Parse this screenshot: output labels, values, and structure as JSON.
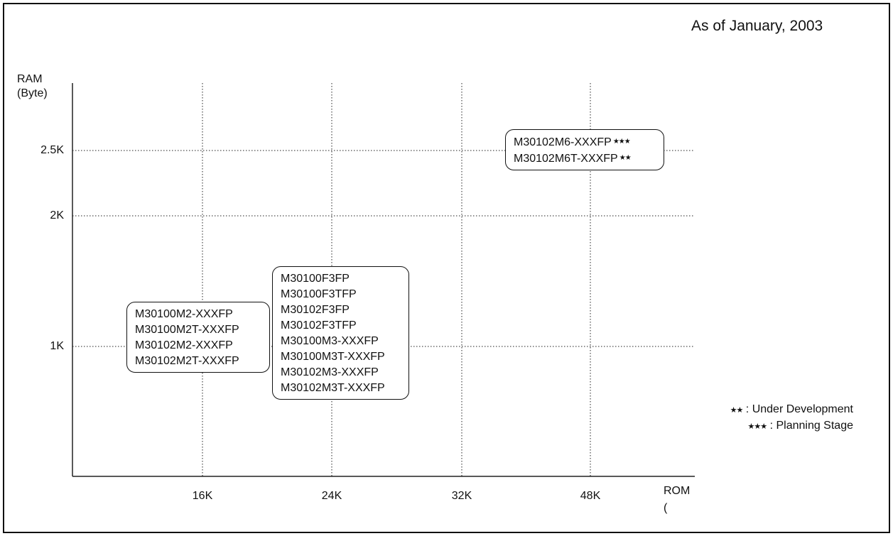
{
  "as_of": "As of January, 2003",
  "chart_data": {
    "type": "table",
    "ylabel_line1": "RAM",
    "ylabel_line2": "(Byte)",
    "xlabel_line1": "ROM",
    "xlabel_line2": "(",
    "x_ticks": [
      "16K",
      "24K",
      "32K",
      "48K"
    ],
    "y_ticks": [
      "1K",
      "2K",
      "2.5K"
    ],
    "groups": [
      {
        "rom": "16K",
        "ram": "1K",
        "parts": [
          {
            "name": "M30100M2-XXXFP",
            "mark": ""
          },
          {
            "name": "M30100M2T-XXXFP",
            "mark": ""
          },
          {
            "name": "M30102M2-XXXFP",
            "mark": ""
          },
          {
            "name": "M30102M2T-XXXFP",
            "mark": ""
          }
        ]
      },
      {
        "rom": "24K",
        "ram": "1K",
        "parts": [
          {
            "name": "M30100F3FP",
            "mark": ""
          },
          {
            "name": "M30100F3TFP",
            "mark": ""
          },
          {
            "name": "M30102F3FP",
            "mark": ""
          },
          {
            "name": "M30102F3TFP",
            "mark": ""
          },
          {
            "name": "M30100M3-XXXFP",
            "mark": ""
          },
          {
            "name": "M30100M3T-XXXFP",
            "mark": ""
          },
          {
            "name": "M30102M3-XXXFP",
            "mark": ""
          },
          {
            "name": "M30102M3T-XXXFP",
            "mark": ""
          }
        ]
      },
      {
        "rom": "48K",
        "ram": "2.5K",
        "parts": [
          {
            "name": "M30102M6-XXXFP",
            "mark": "★★★"
          },
          {
            "name": "M30102M6T-XXXFP",
            "mark": "★★"
          }
        ]
      }
    ],
    "legend": [
      {
        "stars": "★★",
        "label": ": Under Development"
      },
      {
        "stars": "★★★",
        "label": ": Planning Stage"
      }
    ],
    "grid": "dotted"
  }
}
